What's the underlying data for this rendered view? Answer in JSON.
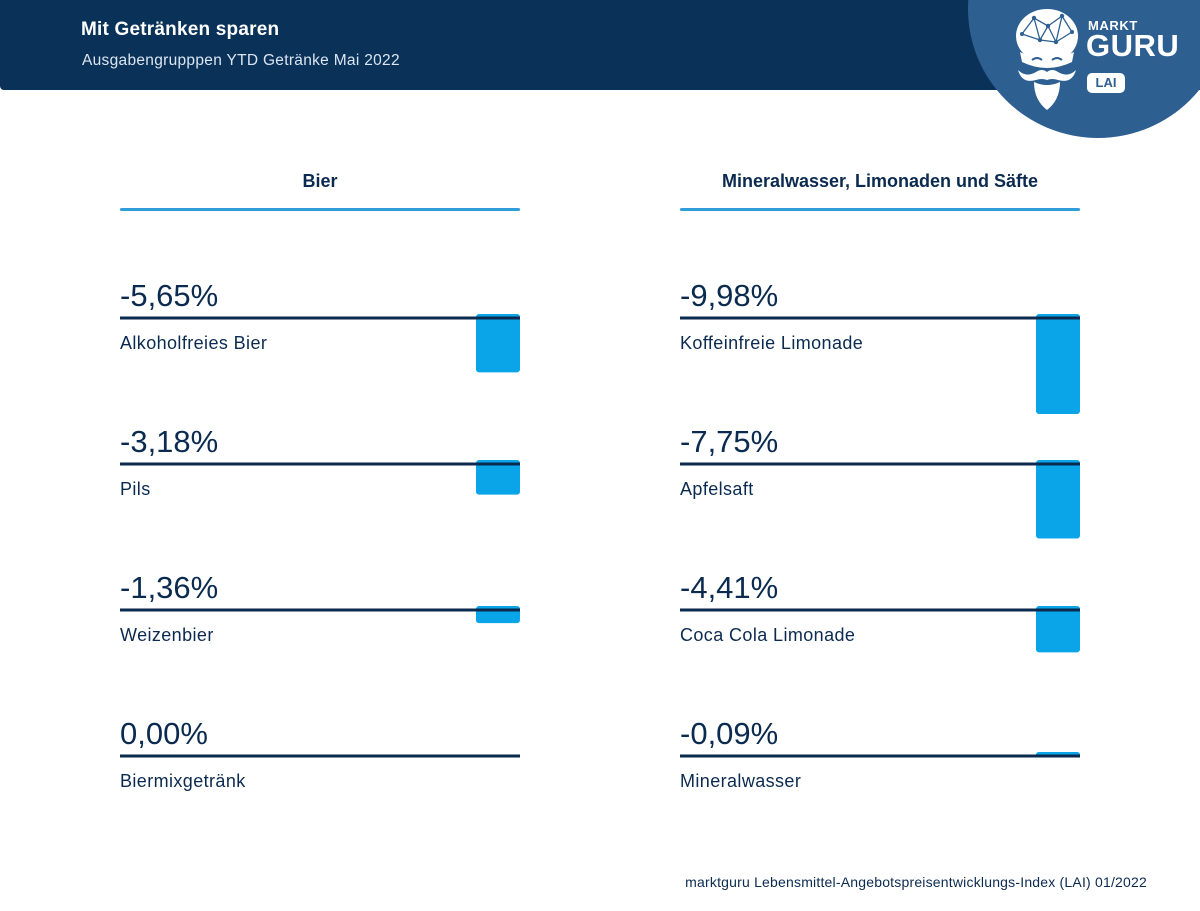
{
  "header": {
    "title": "Mit Getränken sparen",
    "subtitle": "Ausgabengrupppen YTD Getränke Mai 2022"
  },
  "logo": {
    "line1": "MARKT",
    "line2": "GURU",
    "badge": "LAI",
    "icon": "guru-mascot-icon"
  },
  "colors": {
    "header_bg": "#0a3158",
    "logo_bg": "#2d5f91",
    "bar": "#0aa5e8",
    "accent_line": "#2f9ed8",
    "text_dark": "#0b2a4f"
  },
  "chart_data": [
    {
      "type": "bar",
      "title": "Bier",
      "unit": "%",
      "categories": [
        "Alkoholfreies Bier",
        "Pils",
        "Weizenbier",
        "Biermixgetränk"
      ],
      "values": [
        -5.65,
        -3.18,
        -1.36,
        0.0
      ],
      "value_labels": [
        "-5,65%",
        "-3,18%",
        "-1,36%",
        "0,00%"
      ],
      "ylim": [
        -10,
        0
      ]
    },
    {
      "type": "bar",
      "title": "Mineralwasser, Limonaden und Säfte",
      "unit": "%",
      "categories": [
        "Koffeinfreie Limonade",
        "Apfelsaft",
        "Coca Cola Limonade",
        "Mineralwasser"
      ],
      "values": [
        -9.98,
        -7.75,
        -4.41,
        -0.09
      ],
      "value_labels": [
        "-9,98%",
        "-7,75%",
        "-4,41%",
        "-0,09%"
      ],
      "ylim": [
        -10,
        0
      ]
    }
  ],
  "footer": {
    "source": "marktguru Lebensmittel-Angebotspreisentwicklungs-Index (LAI) 01/2022"
  }
}
